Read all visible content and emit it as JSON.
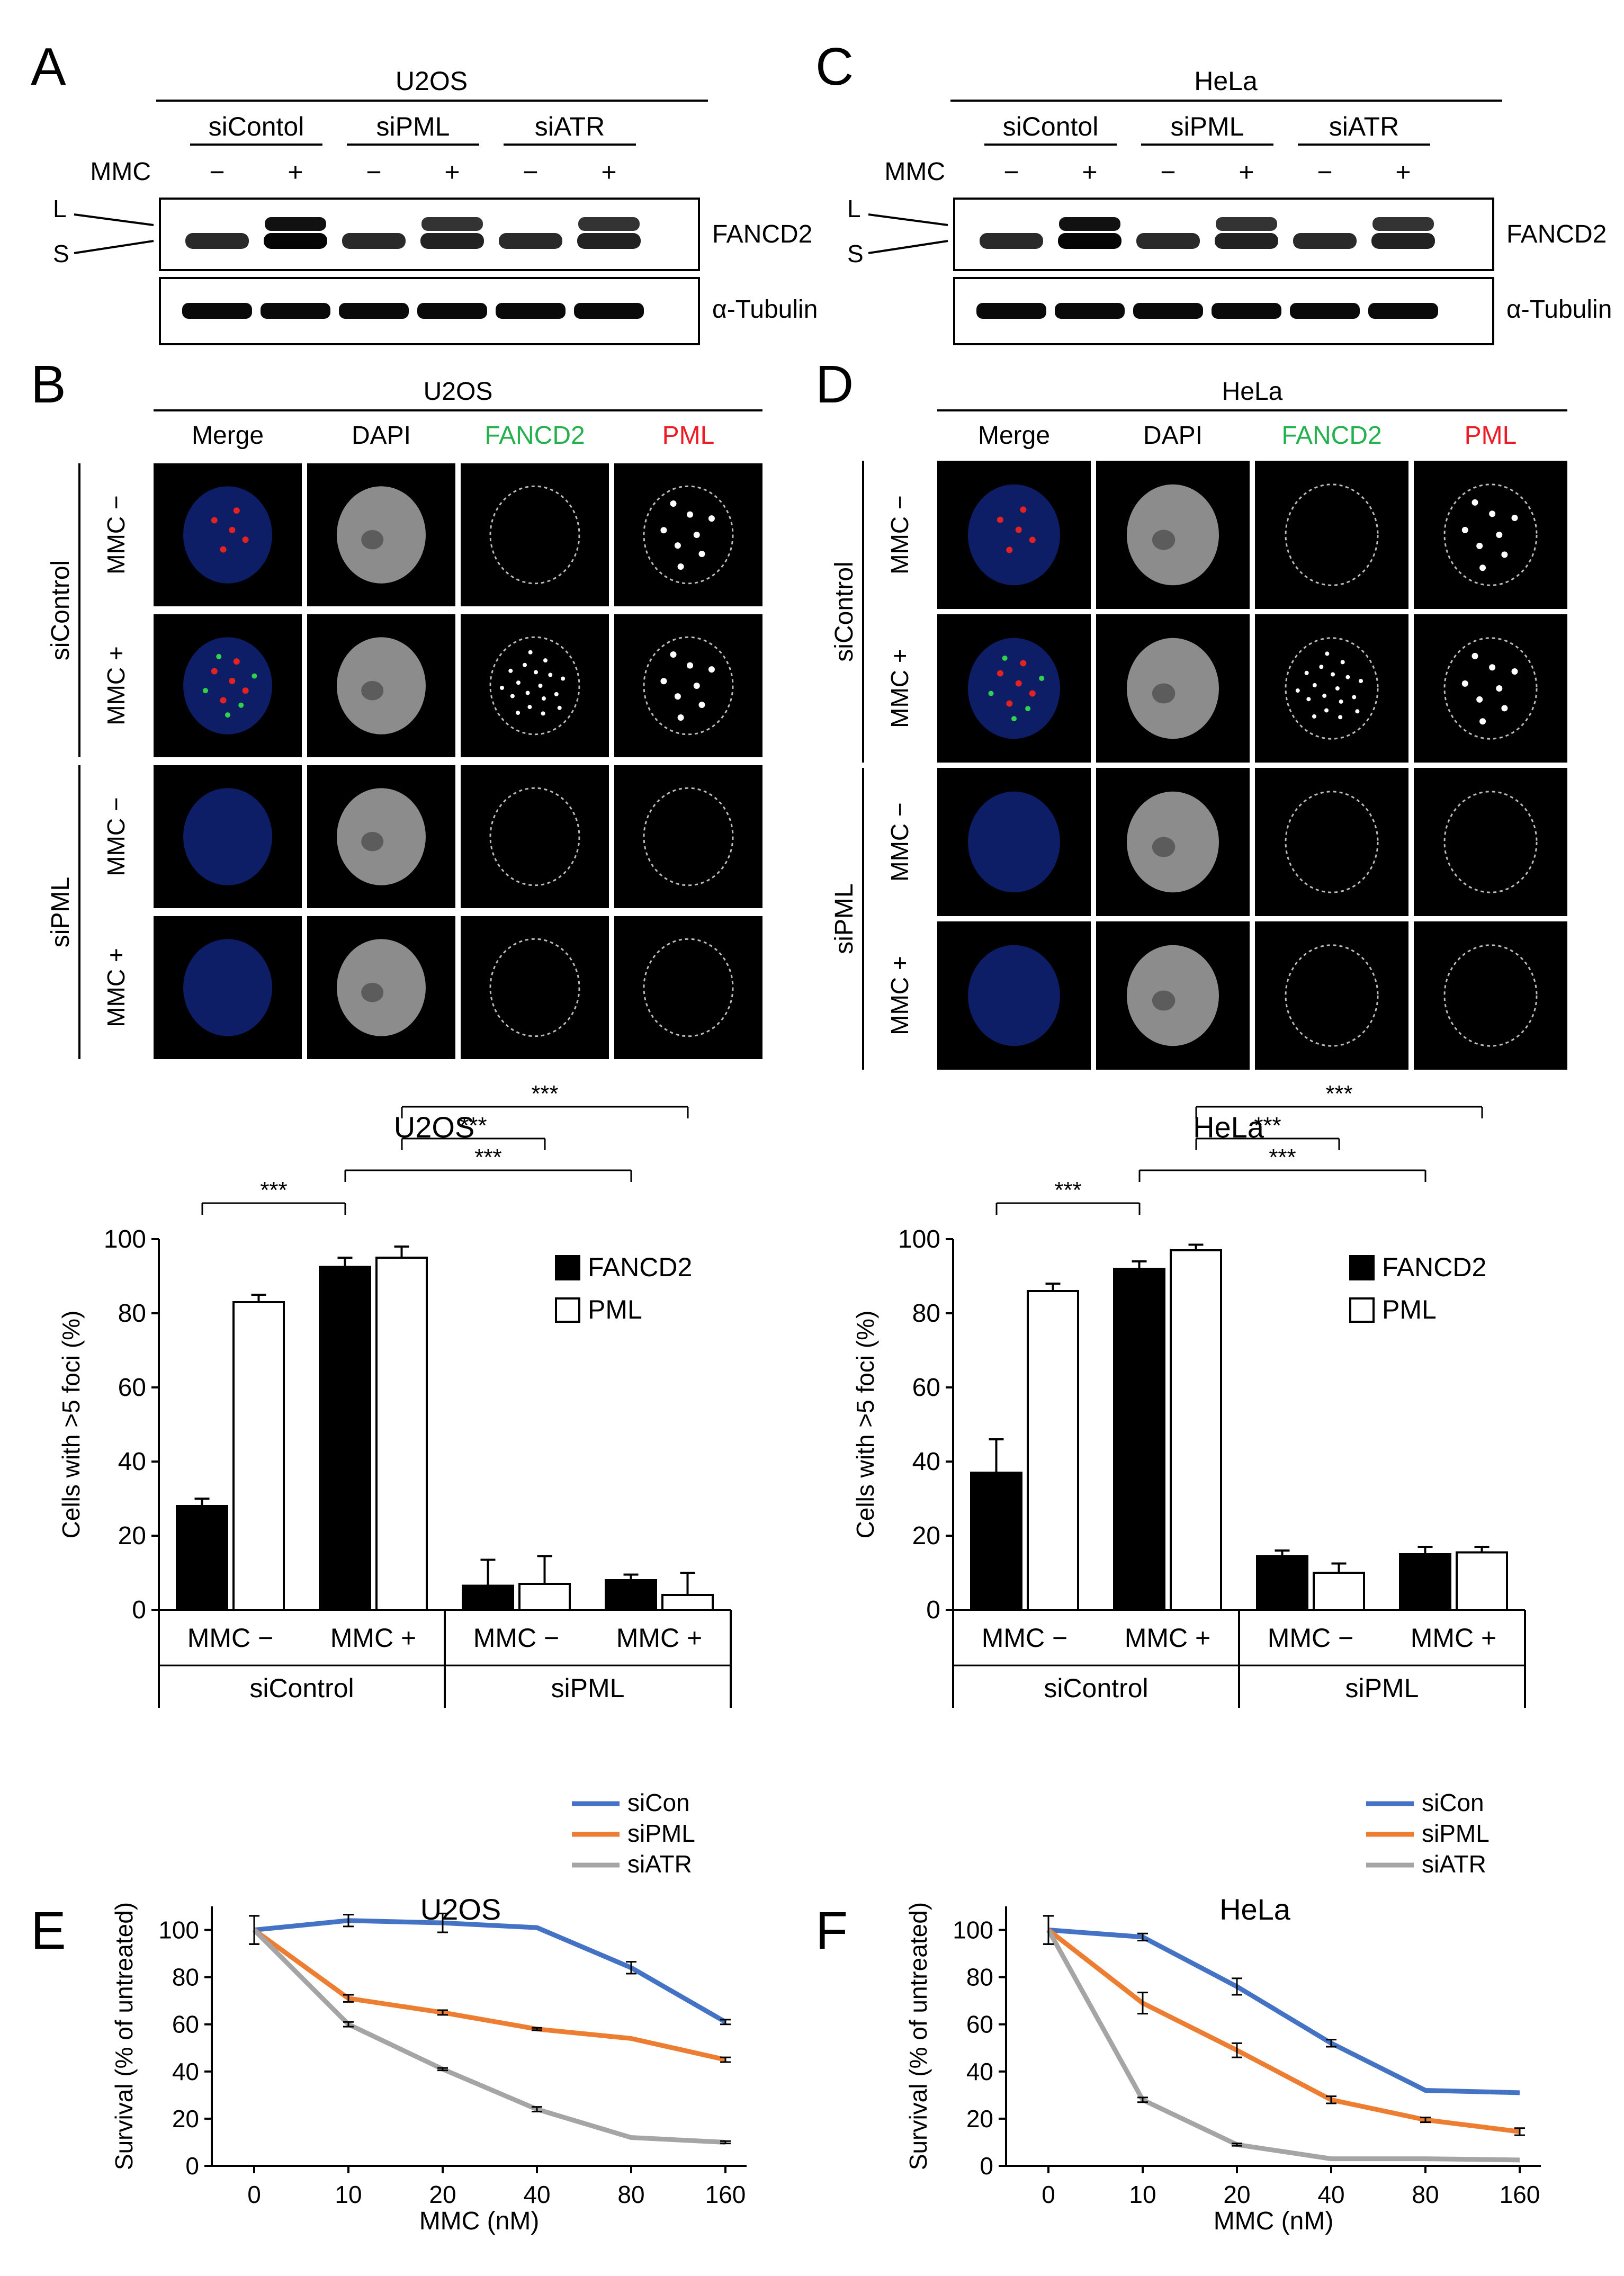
{
  "panel_letters": [
    "A",
    "B",
    "C",
    "D",
    "E",
    "F"
  ],
  "western": {
    "mmc_label": "MMC",
    "minus": "−",
    "plus": "+",
    "groups": [
      "siContol",
      "siPML",
      "siATR"
    ],
    "band_long": "L",
    "band_short": "S",
    "protein_top": "FANCD2",
    "protein_bottom": "α-Tubulin",
    "panels": [
      {
        "letter": "A",
        "cell_line": "U2OS"
      },
      {
        "letter": "C",
        "cell_line": "HeLa"
      }
    ]
  },
  "microscopy": {
    "columns": [
      "Merge",
      "DAPI",
      "FANCD2",
      "PML"
    ],
    "column_colors": {
      "Merge": "#000000",
      "DAPI": "#000000",
      "FANCD2": "#22b14c",
      "PML": "#ed1c24"
    },
    "rows": [
      "MMC −",
      "MMC +",
      "MMC −",
      "MMC +"
    ],
    "groups": [
      "siControl",
      "siPML"
    ],
    "panels": [
      {
        "letter": "B",
        "cell_line": "U2OS"
      },
      {
        "letter": "D",
        "cell_line": "HeLa"
      }
    ]
  },
  "chart_data": [
    {
      "panel": "B",
      "type": "bar",
      "title": "U2OS",
      "ylabel": "Cells with >5 foci (%)",
      "ylim": [
        0,
        100
      ],
      "yticks": [
        0,
        20,
        40,
        60,
        80,
        100
      ],
      "categories": [
        "MMC −",
        "MMC +",
        "MMC −",
        "MMC +"
      ],
      "groups": [
        "siControl",
        "siPML"
      ],
      "series": [
        {
          "name": "FANCD2",
          "color": "#000000",
          "values": [
            28,
            92.5,
            6.5,
            8
          ],
          "errors": [
            2,
            2.5,
            7,
            1.5
          ]
        },
        {
          "name": "PML",
          "color": "#ffffff",
          "values": [
            83,
            95,
            7,
            4
          ],
          "errors": [
            2,
            3,
            7.5,
            6
          ]
        }
      ],
      "significance": [
        "***",
        "***",
        "***",
        "***"
      ],
      "legend": "top-right"
    },
    {
      "panel": "D",
      "type": "bar",
      "title": "HeLa",
      "ylabel": "Cells with >5 foci (%)",
      "ylim": [
        0,
        100
      ],
      "yticks": [
        0,
        20,
        40,
        60,
        80,
        100
      ],
      "categories": [
        "MMC −",
        "MMC +",
        "MMC −",
        "MMC +"
      ],
      "groups": [
        "siControl",
        "siPML"
      ],
      "series": [
        {
          "name": "FANCD2",
          "color": "#000000",
          "values": [
            37,
            92,
            14.5,
            15
          ],
          "errors": [
            9,
            2,
            1.5,
            2
          ]
        },
        {
          "name": "PML",
          "color": "#ffffff",
          "values": [
            86,
            97,
            10,
            15.5
          ],
          "errors": [
            2,
            1.5,
            2.5,
            1.5
          ]
        }
      ],
      "significance": [
        "***",
        "***",
        "***",
        "***"
      ],
      "legend": "top-right"
    },
    {
      "panel": "E",
      "type": "line",
      "title": "U2OS",
      "xlabel": "MMC (nM)",
      "ylabel": "Survival (% of untreated)",
      "x": [
        "0",
        "10",
        "20",
        "40",
        "80",
        "160"
      ],
      "ylim": [
        0,
        110
      ],
      "yticks": [
        0,
        20,
        40,
        60,
        80,
        100
      ],
      "series": [
        {
          "name": "siCon",
          "color": "#4472c4",
          "values": [
            100,
            104,
            103,
            101,
            84,
            61
          ],
          "errors": [
            6,
            2.5,
            4,
            0,
            2.5,
            1
          ]
        },
        {
          "name": "siPML",
          "color": "#ed7d31",
          "values": [
            100,
            71,
            65,
            58,
            54,
            45
          ],
          "errors": [
            6,
            1.5,
            1,
            0.5,
            0,
            1
          ]
        },
        {
          "name": "siATR",
          "color": "#a5a5a5",
          "values": [
            100,
            60,
            41,
            24,
            12,
            10
          ],
          "errors": [
            6,
            1,
            0.5,
            1,
            0,
            0.5
          ]
        }
      ],
      "legend": "top-right"
    },
    {
      "panel": "F",
      "type": "line",
      "title": "HeLa",
      "xlabel": "MMC (nM)",
      "ylabel": "Survival (% of untreated)",
      "x": [
        "0",
        "10",
        "20",
        "40",
        "80",
        "160"
      ],
      "ylim": [
        0,
        110
      ],
      "yticks": [
        0,
        20,
        40,
        60,
        80,
        100
      ],
      "series": [
        {
          "name": "siCon",
          "color": "#4472c4",
          "values": [
            100,
            97,
            76,
            52,
            32,
            31
          ],
          "errors": [
            6,
            1.5,
            3.5,
            1.5,
            0,
            0
          ]
        },
        {
          "name": "siPML",
          "color": "#ed7d31",
          "values": [
            100,
            69,
            49,
            28,
            19.5,
            14.5
          ],
          "errors": [
            6,
            4.5,
            3,
            1.5,
            1,
            1.5
          ]
        },
        {
          "name": "siATR",
          "color": "#a5a5a5",
          "values": [
            100,
            28,
            9,
            3,
            3,
            2.5
          ],
          "errors": [
            6,
            1,
            0.5,
            0,
            0,
            0
          ]
        }
      ],
      "legend": "top-right"
    }
  ]
}
